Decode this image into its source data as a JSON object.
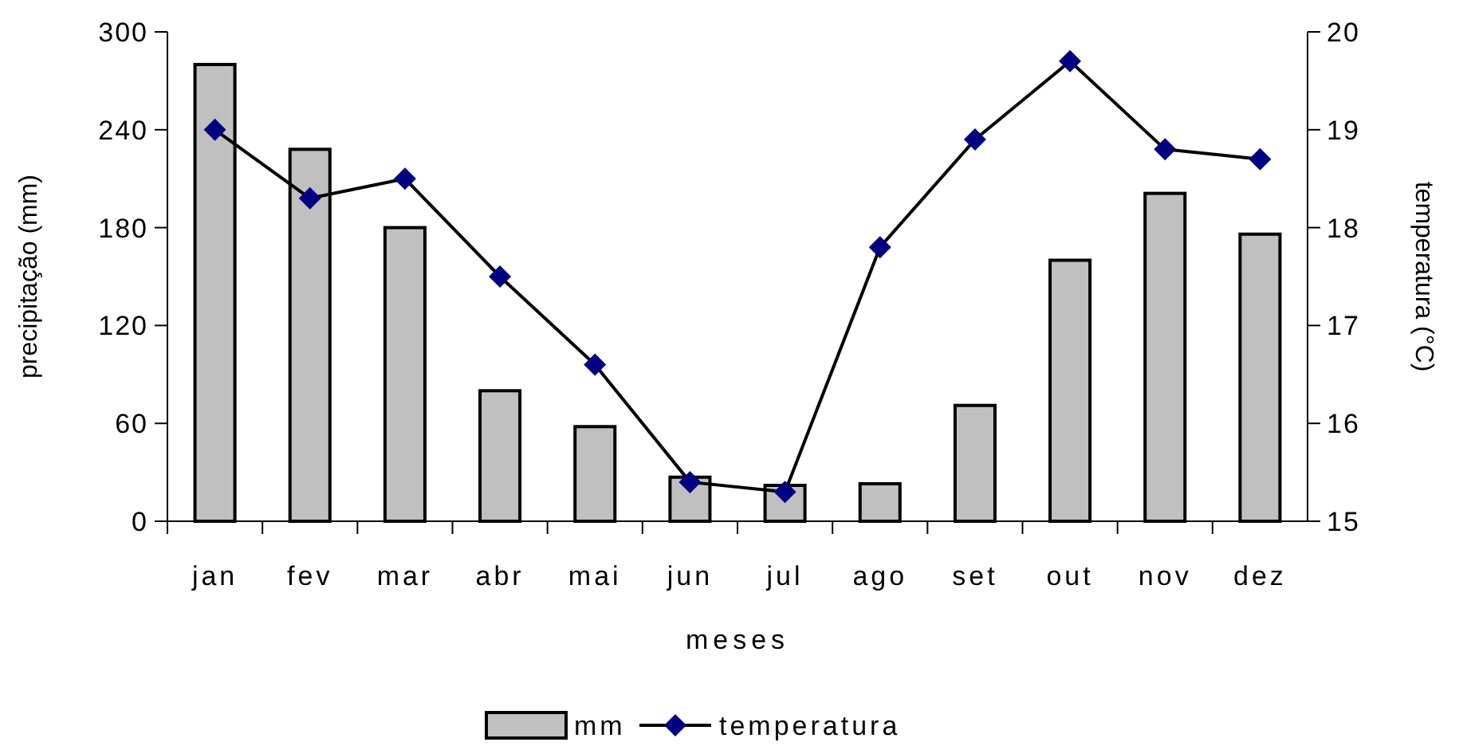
{
  "chart_data": {
    "type": "bar",
    "xlabel": "meses",
    "ylabel": "precipitação (mm)",
    "y2label": "temperatura (°C)",
    "categories": [
      "jan",
      "fev",
      "mar",
      "abr",
      "mai",
      "jun",
      "jul",
      "ago",
      "set",
      "out",
      "nov",
      "dez"
    ],
    "series": [
      {
        "name": "mm",
        "color": "#c0c0c0",
        "values": [
          280,
          228,
          180,
          80,
          58,
          27,
          22,
          23,
          71,
          160,
          201,
          176
        ]
      },
      {
        "name": "temperatura",
        "type": "line",
        "axis": "y2",
        "color": "#000080",
        "marker": "diamond",
        "values": [
          19.0,
          18.3,
          18.5,
          17.5,
          16.6,
          15.4,
          15.3,
          17.8,
          18.9,
          19.7,
          18.8,
          18.7
        ]
      }
    ],
    "ylim": [
      0,
      300
    ],
    "yticks": [
      0,
      60,
      120,
      180,
      240,
      300
    ],
    "y2lim": [
      15,
      20
    ],
    "y2ticks": [
      15,
      16,
      17,
      18,
      19,
      20
    ],
    "grid": false,
    "legend": "bottom"
  }
}
